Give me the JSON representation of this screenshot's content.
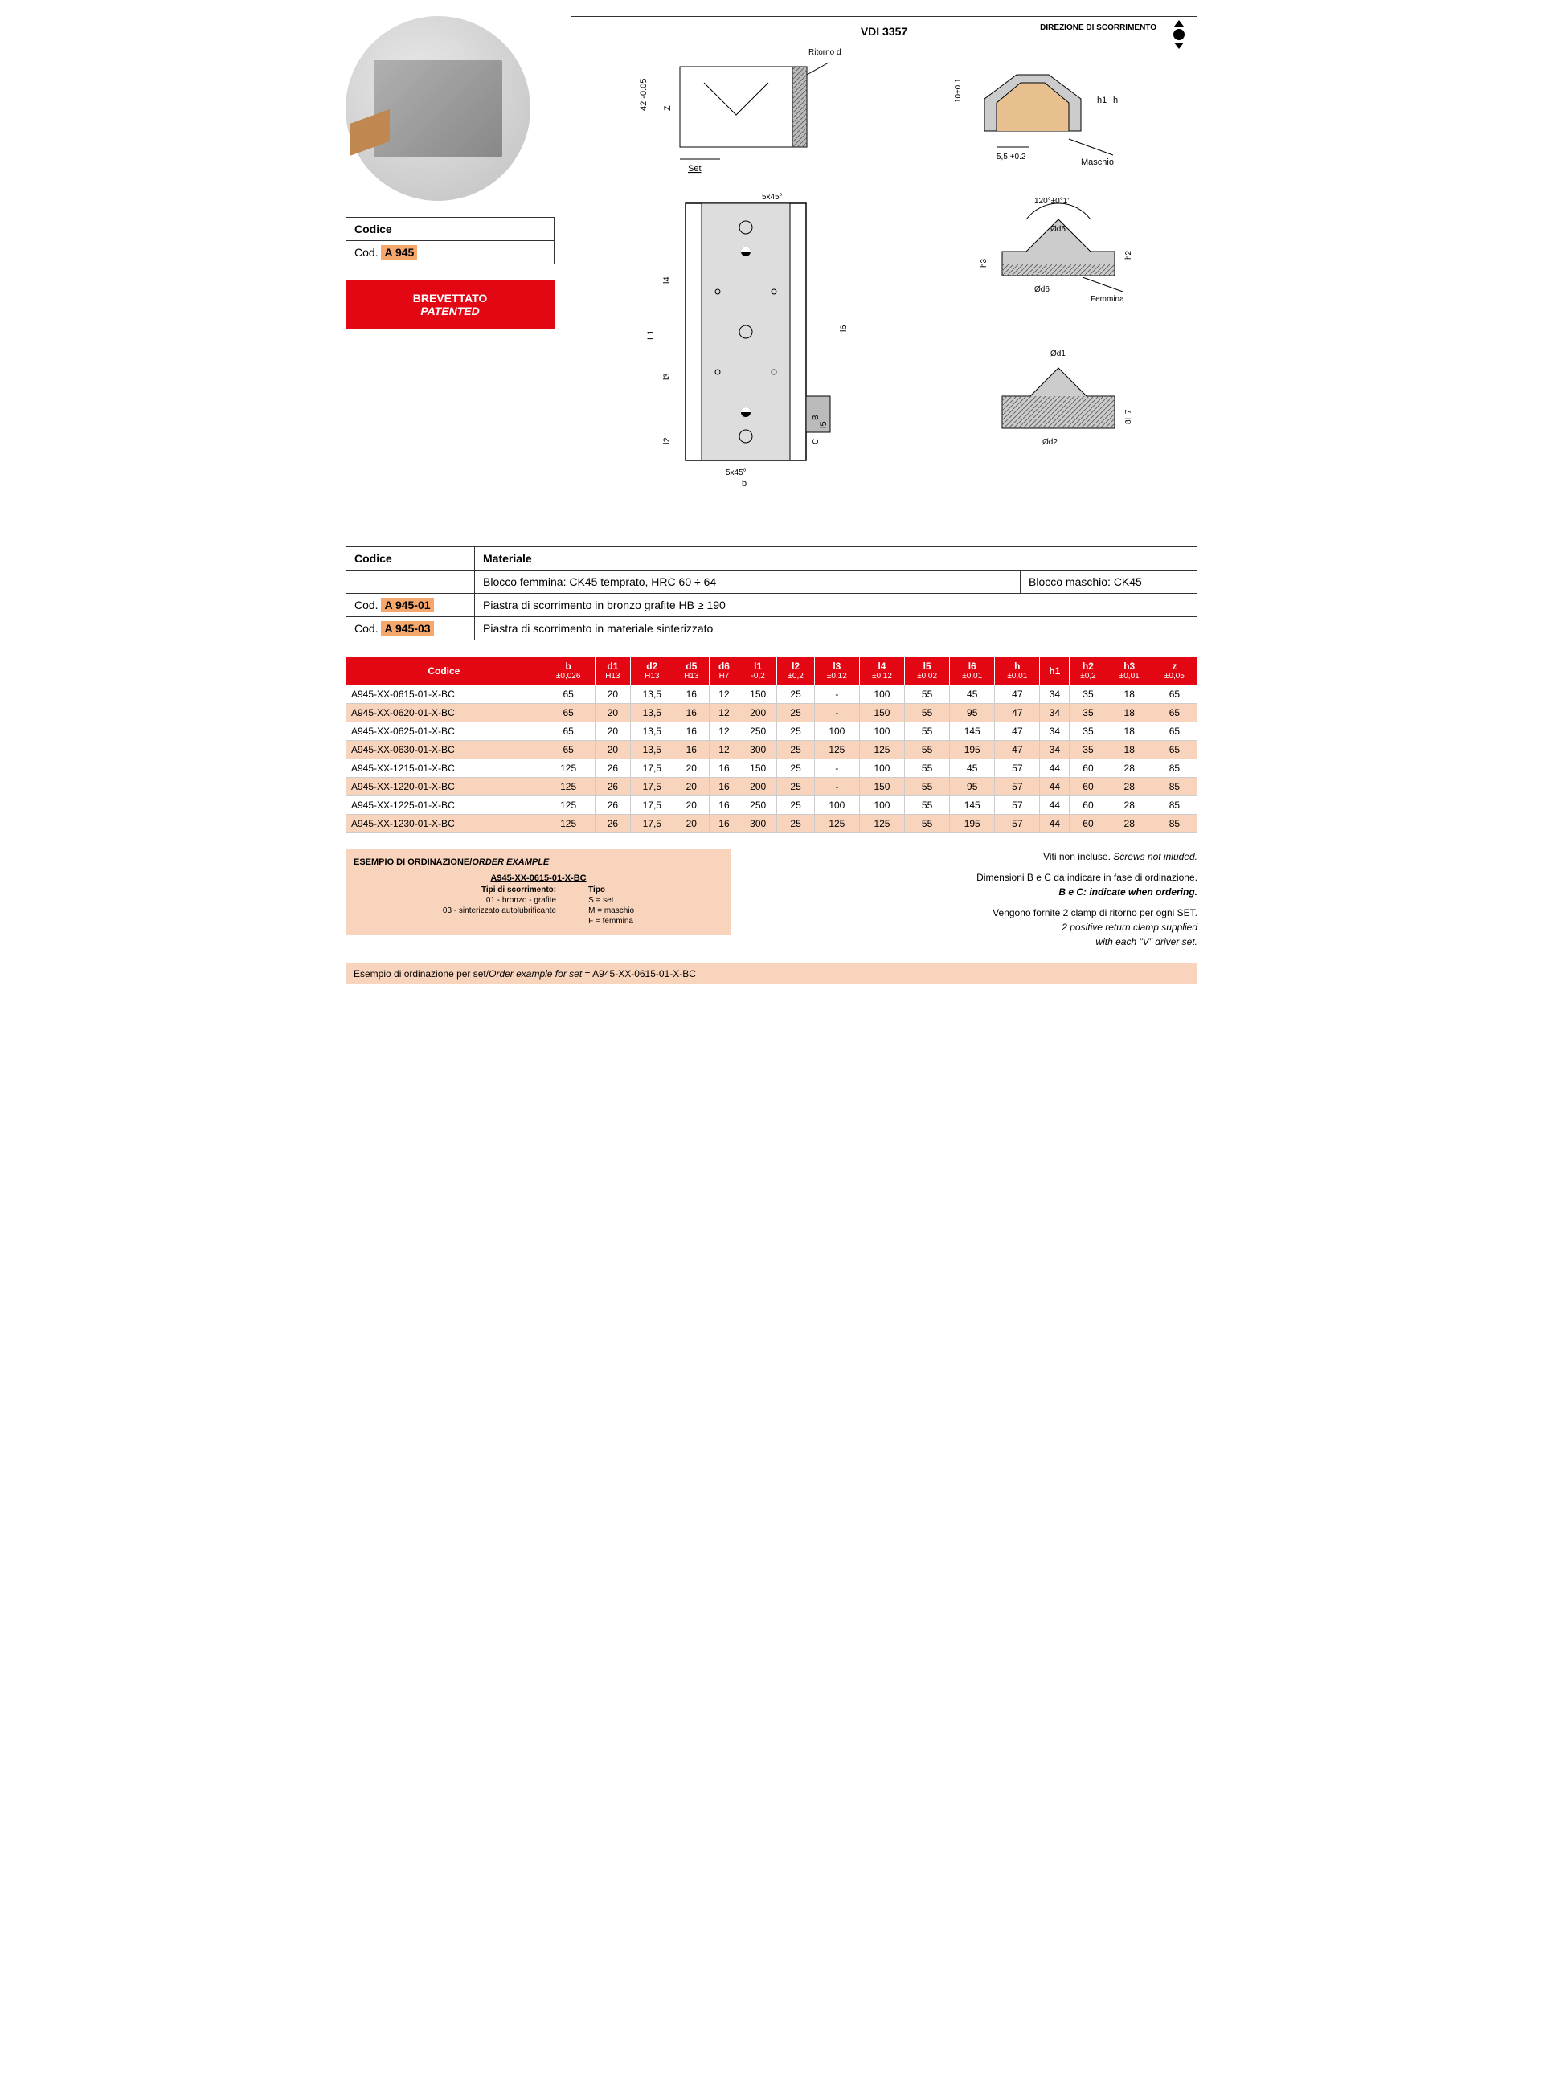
{
  "codice_label": "Codice",
  "cod_prefix": "Cod.",
  "main_code": "A 945",
  "patented_it": "BREVETTATO",
  "patented_en": "PATENTED",
  "drawing": {
    "standard": "VDI 3357",
    "direzione": "DIREZIONE DI SCORRIMENTO",
    "labels": {
      "ritorno": "Ritorno di sicurezza",
      "set": "Set",
      "maschio": "Maschio",
      "femmina": "Femmina",
      "z_dim": "42 -0.05",
      "z_ax": "Z",
      "ten_pm": "10±0.1",
      "h": "h",
      "h1": "h1",
      "five_five": "5,5 +0.2",
      "five45": "5x45°",
      "angle120": "120°±0°1'",
      "d5": "Ød5",
      "h2": "h2",
      "h3": "h3",
      "d6": "Ød6",
      "d1": "Ød1",
      "d2": "Ød2",
      "eight_h7": "8H7",
      "L1": "L1",
      "l2": "l2",
      "l3": "l3",
      "l4": "l4",
      "l5": "l5",
      "l6": "l6",
      "b": "b",
      "B": "B",
      "C": "C"
    }
  },
  "material": {
    "header_codice": "Codice",
    "header_materiale": "Materiale",
    "blocco_femmina": "Blocco femmina: CK45 temprato, HRC 60 ÷ 64",
    "blocco_maschio": "Blocco maschio: CK45",
    "row1_code": "A 945-01",
    "row1_desc": "Piastra di scorrimento in bronzo grafite HB ≥ 190",
    "row2_code": "A 945-03",
    "row2_desc": "Piastra di scorrimento in materiale sinterizzato"
  },
  "data_table": {
    "headers": [
      {
        "t": "Codice",
        "s": ""
      },
      {
        "t": "b",
        "s": "±0,026"
      },
      {
        "t": "d1",
        "s": "H13"
      },
      {
        "t": "d2",
        "s": "H13"
      },
      {
        "t": "d5",
        "s": "H13"
      },
      {
        "t": "d6",
        "s": "H7"
      },
      {
        "t": "l1",
        "s": "-0,2"
      },
      {
        "t": "l2",
        "s": "±0,2"
      },
      {
        "t": "l3",
        "s": "±0,12"
      },
      {
        "t": "l4",
        "s": "±0,12"
      },
      {
        "t": "l5",
        "s": "±0,02"
      },
      {
        "t": "l6",
        "s": "±0,01"
      },
      {
        "t": "h",
        "s": "±0,01"
      },
      {
        "t": "h1",
        "s": ""
      },
      {
        "t": "h2",
        "s": "±0,2"
      },
      {
        "t": "h3",
        "s": "±0,01"
      },
      {
        "t": "z",
        "s": "±0,05"
      }
    ],
    "rows": [
      [
        "A945-XX-0615-01-X-BC",
        "65",
        "20",
        "13,5",
        "16",
        "12",
        "150",
        "25",
        "-",
        "100",
        "55",
        "45",
        "47",
        "34",
        "35",
        "18",
        "65"
      ],
      [
        "A945-XX-0620-01-X-BC",
        "65",
        "20",
        "13,5",
        "16",
        "12",
        "200",
        "25",
        "-",
        "150",
        "55",
        "95",
        "47",
        "34",
        "35",
        "18",
        "65"
      ],
      [
        "A945-XX-0625-01-X-BC",
        "65",
        "20",
        "13,5",
        "16",
        "12",
        "250",
        "25",
        "100",
        "100",
        "55",
        "145",
        "47",
        "34",
        "35",
        "18",
        "65"
      ],
      [
        "A945-XX-0630-01-X-BC",
        "65",
        "20",
        "13,5",
        "16",
        "12",
        "300",
        "25",
        "125",
        "125",
        "55",
        "195",
        "47",
        "34",
        "35",
        "18",
        "65"
      ],
      [
        "A945-XX-1215-01-X-BC",
        "125",
        "26",
        "17,5",
        "20",
        "16",
        "150",
        "25",
        "-",
        "100",
        "55",
        "45",
        "57",
        "44",
        "60",
        "28",
        "85"
      ],
      [
        "A945-XX-1220-01-X-BC",
        "125",
        "26",
        "17,5",
        "20",
        "16",
        "200",
        "25",
        "-",
        "150",
        "55",
        "95",
        "57",
        "44",
        "60",
        "28",
        "85"
      ],
      [
        "A945-XX-1225-01-X-BC",
        "125",
        "26",
        "17,5",
        "20",
        "16",
        "250",
        "25",
        "100",
        "100",
        "55",
        "145",
        "57",
        "44",
        "60",
        "28",
        "85"
      ],
      [
        "A945-XX-1230-01-X-BC",
        "125",
        "26",
        "17,5",
        "20",
        "16",
        "300",
        "25",
        "125",
        "125",
        "55",
        "195",
        "57",
        "44",
        "60",
        "28",
        "85"
      ]
    ]
  },
  "order_example": {
    "title_it": "ESEMPIO DI ORDINAZIONE",
    "title_en": "ORDER EXAMPLE",
    "code": "A945-XX-0615-01-X-BC",
    "tipi_label": "Tipi di scorrimento:",
    "tipi_01": "01 - bronzo - grafite",
    "tipi_03": "03 - sinterizzato autolubrificante",
    "tipo_label": "Tipo",
    "tipo_s": "S = set",
    "tipo_m": "M = maschio",
    "tipo_f": "F = femmina"
  },
  "notes": {
    "screws_it": "Viti non incluse.",
    "screws_en": "Screws not inluded.",
    "bc_it": "Dimensioni B e C da indicare in fase di ordinazione.",
    "bc_en": "B e C: indicate when ordering.",
    "clamp_it": "Vengono fornite 2 clamp di ritorno per ogni SET.",
    "clamp_en1": "2 positive return clamp supplied",
    "clamp_en2": "with each \"V\" driver set."
  },
  "example_set": {
    "label_it": "Esempio di ordinazione per set",
    "label_en": "Order example for set",
    "value": "A945-XX-0615-01-X-BC"
  },
  "colors": {
    "accent_red": "#e30613",
    "highlight": "#f5a76c",
    "row_alt": "#f9d4bd"
  }
}
